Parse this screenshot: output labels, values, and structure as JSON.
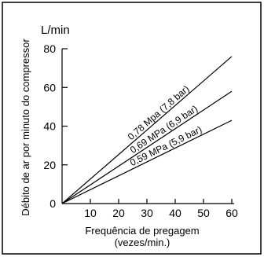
{
  "chart_data": {
    "type": "line",
    "title": "",
    "y_unit": "L/min",
    "xlabel_line1": "Frequência de pregagem",
    "xlabel_line2": "(vezes/min.)",
    "ylabel": "Débito de ar por minuto do compressor",
    "xlim": [
      0,
      60
    ],
    "ylim": [
      0,
      80
    ],
    "xticks": [
      10,
      20,
      30,
      40,
      50,
      60
    ],
    "yticks": [
      0,
      20,
      40,
      60,
      80
    ],
    "grid": false,
    "series": [
      {
        "name": "0,78 Mpa (7,8 bar)",
        "x": [
          0,
          60
        ],
        "y": [
          0,
          76
        ]
      },
      {
        "name": "0,69 MPa (6,9 bar)",
        "x": [
          0,
          60
        ],
        "y": [
          0,
          58
        ]
      },
      {
        "name": "0,59 MPa (5,9 bar)",
        "x": [
          0,
          60
        ],
        "y": [
          0,
          43
        ]
      }
    ]
  }
}
